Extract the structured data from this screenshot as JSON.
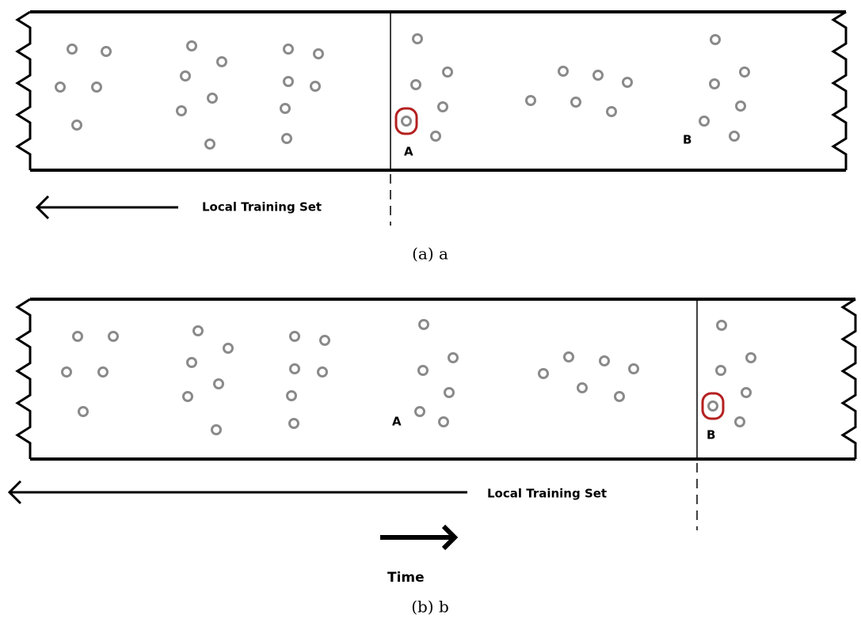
{
  "panels": [
    {
      "point_labels": [
        "A",
        "B"
      ],
      "window_label": "Local Training Set",
      "caption": "(a) a"
    },
    {
      "point_labels": [
        "A",
        "B"
      ],
      "window_label": "Local Training Set",
      "caption": "(b) b",
      "time_label": "Time"
    }
  ]
}
